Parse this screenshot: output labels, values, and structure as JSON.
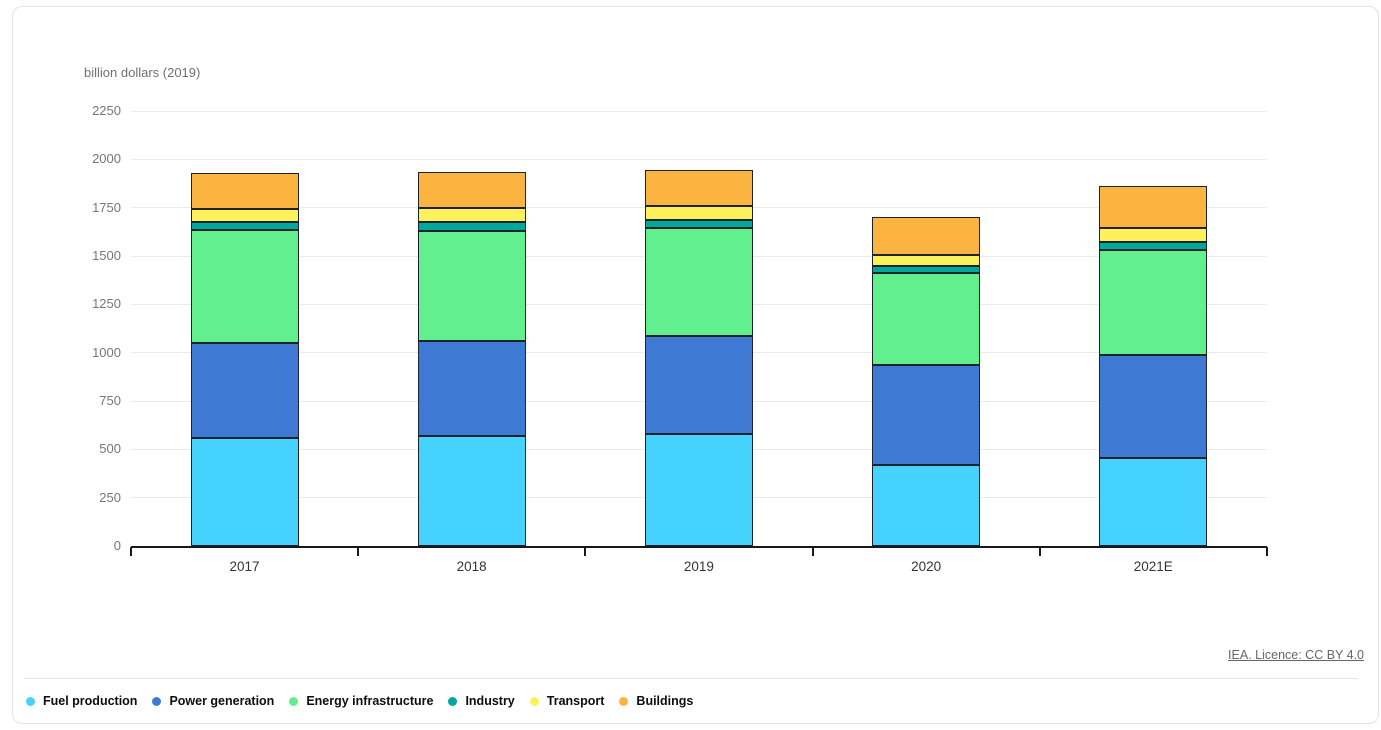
{
  "page": {
    "unit_label": "billion dollars (2019)",
    "source_link_text": "IEA. Licence: CC BY 4.0"
  },
  "colors": {
    "bar_border": "#1f2228",
    "grid": "#eaeaee",
    "axis": "#17171c",
    "tick_text": "#75757e",
    "category_text": "#33333a",
    "legend_text": "#0d0d12",
    "link_text": "#66666f",
    "card_border": "#e4e4e8",
    "background": "#ffffff"
  },
  "chart_data": {
    "type": "bar",
    "subtype": "stacked-vertical",
    "title": "",
    "xlabel": "",
    "ylabel": "billion dollars (2019)",
    "ylim": [
      0,
      2250
    ],
    "ytick_values": [
      0,
      250,
      500,
      750,
      1000,
      1250,
      1500,
      1750,
      2000,
      2250
    ],
    "ytick_labels": [
      "0",
      "250",
      "500",
      "750",
      "1000",
      "1250",
      "1500",
      "1750",
      "2000",
      "2250"
    ],
    "grid": true,
    "legend_position": "bottom",
    "source": "IEA. Licence: CC BY 4.0",
    "categories": [
      "2017",
      "2018",
      "2019",
      "2020",
      "2021E"
    ],
    "series": [
      {
        "name": "Fuel production",
        "color": "#45d2fc",
        "values": [
          558,
          570,
          580,
          421,
          453
        ]
      },
      {
        "name": "Power generation",
        "color": "#3e7ad3",
        "values": [
          490,
          490,
          508,
          515,
          536
        ]
      },
      {
        "name": "Energy infrastructure",
        "color": "#62f08f",
        "values": [
          585,
          572,
          557,
          477,
          543
        ]
      },
      {
        "name": "Industry",
        "color": "#00a79b",
        "values": [
          42,
          45,
          42,
          35,
          43
        ]
      },
      {
        "name": "Transport",
        "color": "#fdf15b",
        "values": [
          70,
          71,
          71,
          55,
          70
        ]
      },
      {
        "name": "Buildings",
        "color": "#fcb440",
        "values": [
          184,
          185,
          186,
          197,
          219
        ]
      }
    ],
    "totals": [
      1929,
      1933,
      1944,
      1700,
      1864
    ]
  }
}
